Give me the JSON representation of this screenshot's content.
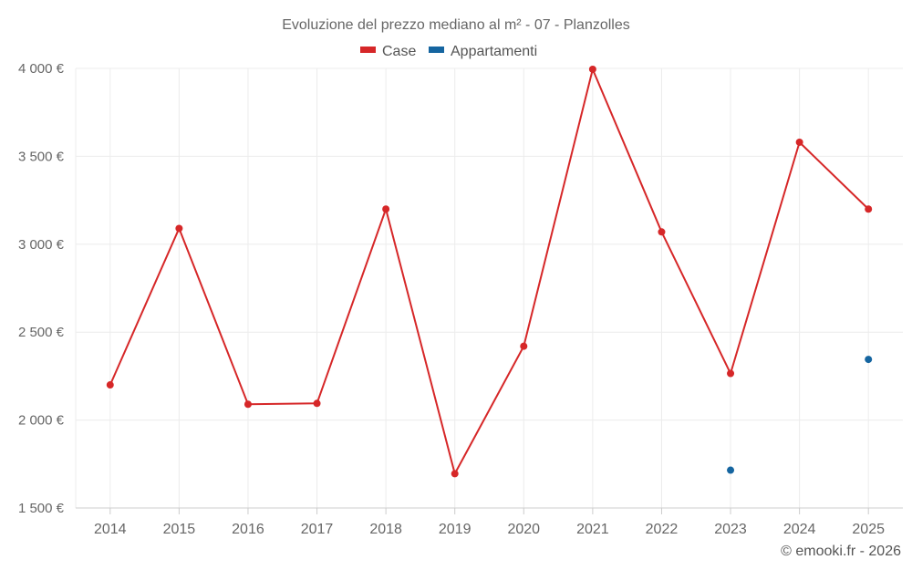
{
  "chart_data": {
    "type": "line",
    "title": "Evoluzione del prezzo mediano al m² - 07 - Planzolles",
    "categories": [
      "2014",
      "2015",
      "2016",
      "2017",
      "2018",
      "2019",
      "2020",
      "2021",
      "2022",
      "2023",
      "2024",
      "2025"
    ],
    "series": [
      {
        "name": "Case",
        "color": "#d62728",
        "values": [
          2200,
          3090,
          2090,
          2095,
          3200,
          1695,
          2420,
          3995,
          3070,
          2265,
          3580,
          3200
        ]
      },
      {
        "name": "Appartamenti",
        "color": "#1565a0",
        "values": [
          null,
          null,
          null,
          null,
          null,
          null,
          null,
          null,
          null,
          1715,
          null,
          2345
        ]
      }
    ],
    "ylim": [
      1500,
      4000
    ],
    "y_ticks": [
      1500,
      2000,
      2500,
      3000,
      3500,
      4000
    ],
    "y_tick_labels": [
      "1 500 €",
      "2 000 €",
      "2 500 €",
      "3 000 €",
      "3 500 €",
      "4 000 €"
    ],
    "xlabel": "",
    "ylabel": "",
    "legend": "top-center",
    "grid": true,
    "credit": "© emooki.fr - 2026"
  }
}
